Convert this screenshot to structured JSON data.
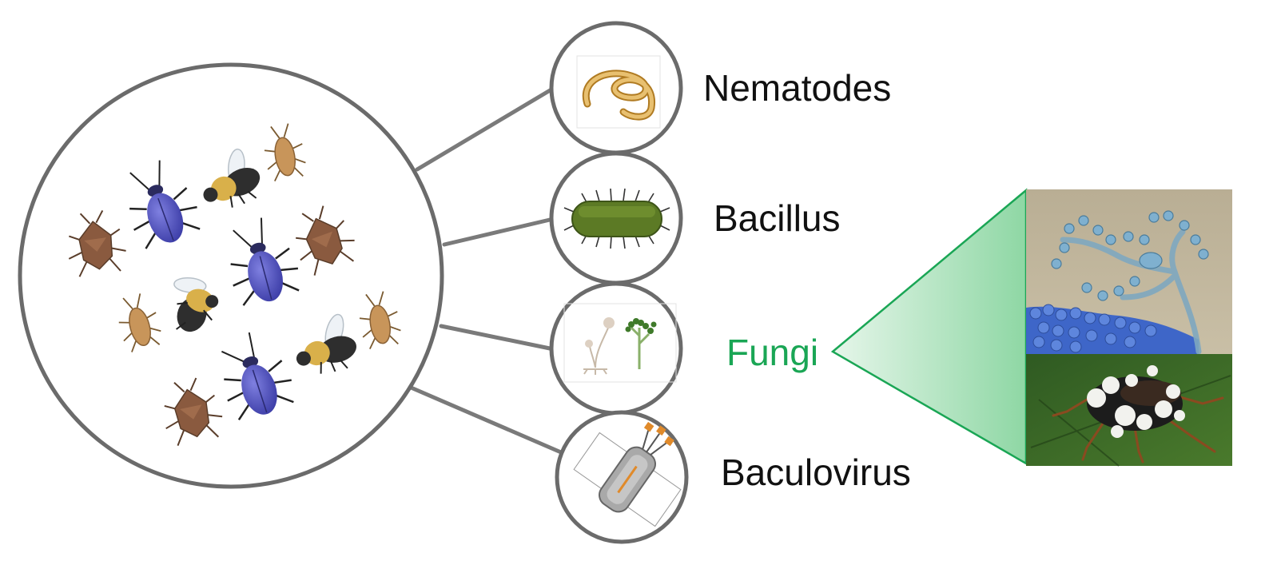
{
  "diagram": {
    "categories": [
      {
        "id": "nematodes",
        "label": "Nematodes",
        "icon": "nematode-worm-icon",
        "highlighted": false
      },
      {
        "id": "bacillus",
        "label": "Bacillus",
        "icon": "bacillus-bacterium-icon",
        "highlighted": false
      },
      {
        "id": "fungi",
        "label": "Fungi",
        "icon": "fungal-sporangia-icon",
        "highlighted": true
      },
      {
        "id": "baculovirus",
        "label": "Baculovirus",
        "icon": "baculovirus-particle-icon",
        "highlighted": false
      }
    ],
    "hub_icon": "insect-pests-illustration",
    "fungi_examples": [
      "fungal-conidiophores-micrograph",
      "fungus-infected-insect-photo"
    ]
  },
  "colors": {
    "outline": "#6b6b6b",
    "connector": "#7a7a7a",
    "text": "#111111",
    "highlight": "#1aa655",
    "highlight_fill": "#a8e0b8"
  }
}
